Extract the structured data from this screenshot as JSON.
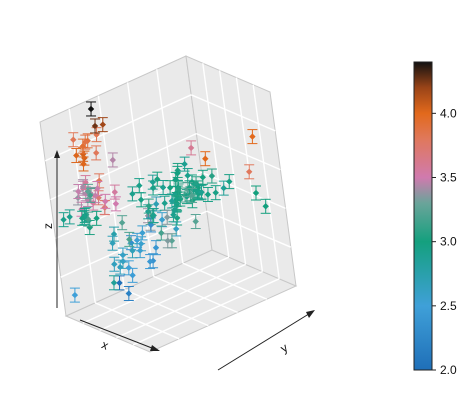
{
  "chart_data": {
    "type": "scatter",
    "variant": "3d-scatter-with-error-bars",
    "xlabel": "x",
    "ylabel": "y",
    "zlabel": "z",
    "box": true,
    "grid": true,
    "panel_color": "#eaeaea",
    "colorbar": {
      "palette": "blue-green-magenta-orange",
      "range": [
        2.0,
        4.4
      ],
      "ticks": [
        2.0,
        2.5,
        3.0,
        3.5,
        4.0
      ],
      "tick_labels": [
        "2.0",
        "2.5",
        "3.0",
        "3.5",
        "4.0"
      ],
      "stops": [
        {
          "value": 2.0,
          "color": "#1f6fb8"
        },
        {
          "value": 2.5,
          "color": "#3fa0d8"
        },
        {
          "value": 3.0,
          "color": "#14a07e"
        },
        {
          "value": 3.3,
          "color": "#6aa49a"
        },
        {
          "value": 3.5,
          "color": "#d07aae"
        },
        {
          "value": 3.8,
          "color": "#e0785c"
        },
        {
          "value": 4.0,
          "color": "#e2691c"
        },
        {
          "value": 4.2,
          "color": "#9a4418"
        },
        {
          "value": 4.4,
          "color": "#111111"
        }
      ]
    },
    "clusters": [
      {
        "count": 20,
        "x": 0.15,
        "y": 0.2,
        "z": 0.62,
        "spread": [
          0.06,
          0.06,
          0.06
        ],
        "value": 3.5
      },
      {
        "count": 12,
        "x": 0.1,
        "y": 0.2,
        "z": 0.82,
        "spread": [
          0.05,
          0.05,
          0.05
        ],
        "value": 4.0
      },
      {
        "count": 10,
        "x": 0.15,
        "y": 0.1,
        "z": 0.5,
        "spread": [
          0.08,
          0.05,
          0.04
        ],
        "value": 3.0
      },
      {
        "count": 55,
        "x": 0.55,
        "y": 0.55,
        "z": 0.55,
        "spread": [
          0.12,
          0.12,
          0.05
        ],
        "value": 3.0
      },
      {
        "count": 22,
        "x": 0.45,
        "y": 0.3,
        "z": 0.3,
        "spread": [
          0.08,
          0.08,
          0.06
        ],
        "value": 2.6
      },
      {
        "count": 10,
        "x": 0.5,
        "y": 0.45,
        "z": 0.4,
        "spread": [
          0.1,
          0.1,
          0.05
        ],
        "value": 3.2
      }
    ],
    "points": [
      {
        "x": 0.08,
        "y": 0.3,
        "z": 0.98,
        "value": 4.4
      },
      {
        "x": 0.05,
        "y": 0.05,
        "z": 0.1,
        "value": 2.5
      },
      {
        "x": 0.38,
        "y": 0.18,
        "z": 0.18,
        "value": 2.0
      },
      {
        "x": 0.1,
        "y": 0.28,
        "z": 0.62,
        "value": 3.8
      },
      {
        "x": 0.95,
        "y": 0.55,
        "z": 0.8,
        "value": 4.0
      },
      {
        "x": 0.8,
        "y": 0.95,
        "z": 0.75,
        "value": 4.0
      },
      {
        "x": 0.7,
        "y": 0.95,
        "z": 0.55,
        "value": 3.8
      },
      {
        "x": 0.3,
        "y": 0.8,
        "z": 0.65,
        "value": 3.6
      },
      {
        "x": 0.75,
        "y": 0.95,
        "z": 0.45,
        "value": 3.0
      },
      {
        "x": 0.85,
        "y": 0.95,
        "z": 0.4,
        "value": 3.0
      }
    ]
  }
}
